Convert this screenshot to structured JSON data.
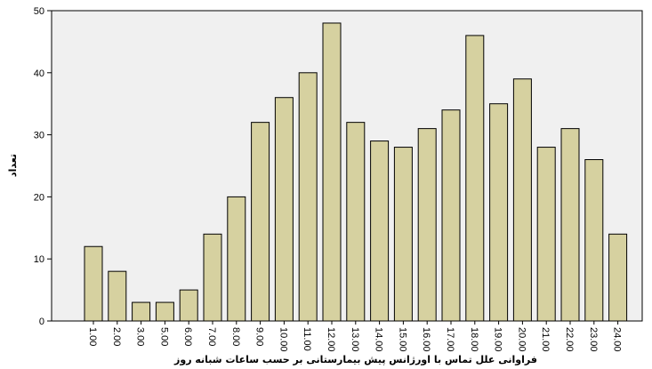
{
  "chart_data": {
    "type": "bar",
    "categories": [
      "1.00",
      "2.00",
      "3.00",
      "5.00",
      "6.00",
      "7.00",
      "8.00",
      "9.00",
      "10.00",
      "11.00",
      "12.00",
      "13.00",
      "14.00",
      "15.00",
      "16.00",
      "17.00",
      "18.00",
      "19.00",
      "20.00",
      "21.00",
      "22.00",
      "23.00",
      "24.00"
    ],
    "values": [
      12,
      8,
      3,
      3,
      5,
      14,
      20,
      32,
      36,
      40,
      48,
      32,
      29,
      28,
      31,
      34,
      46,
      35,
      39,
      28,
      31,
      26,
      14
    ],
    "xlabel": "فراوانی علل تماس با اورژانس پیش بیمارستانی بر حسب ساعات شبانه روز",
    "ylabel": "تعداد",
    "ylim": [
      0,
      50
    ],
    "yticks": [
      "0",
      "10",
      "20",
      "30",
      "40",
      "50"
    ],
    "grid": false,
    "bar_color": "#d6d1a0",
    "bar_stroke": "#000000",
    "plot_background": "#f0f0f0"
  }
}
